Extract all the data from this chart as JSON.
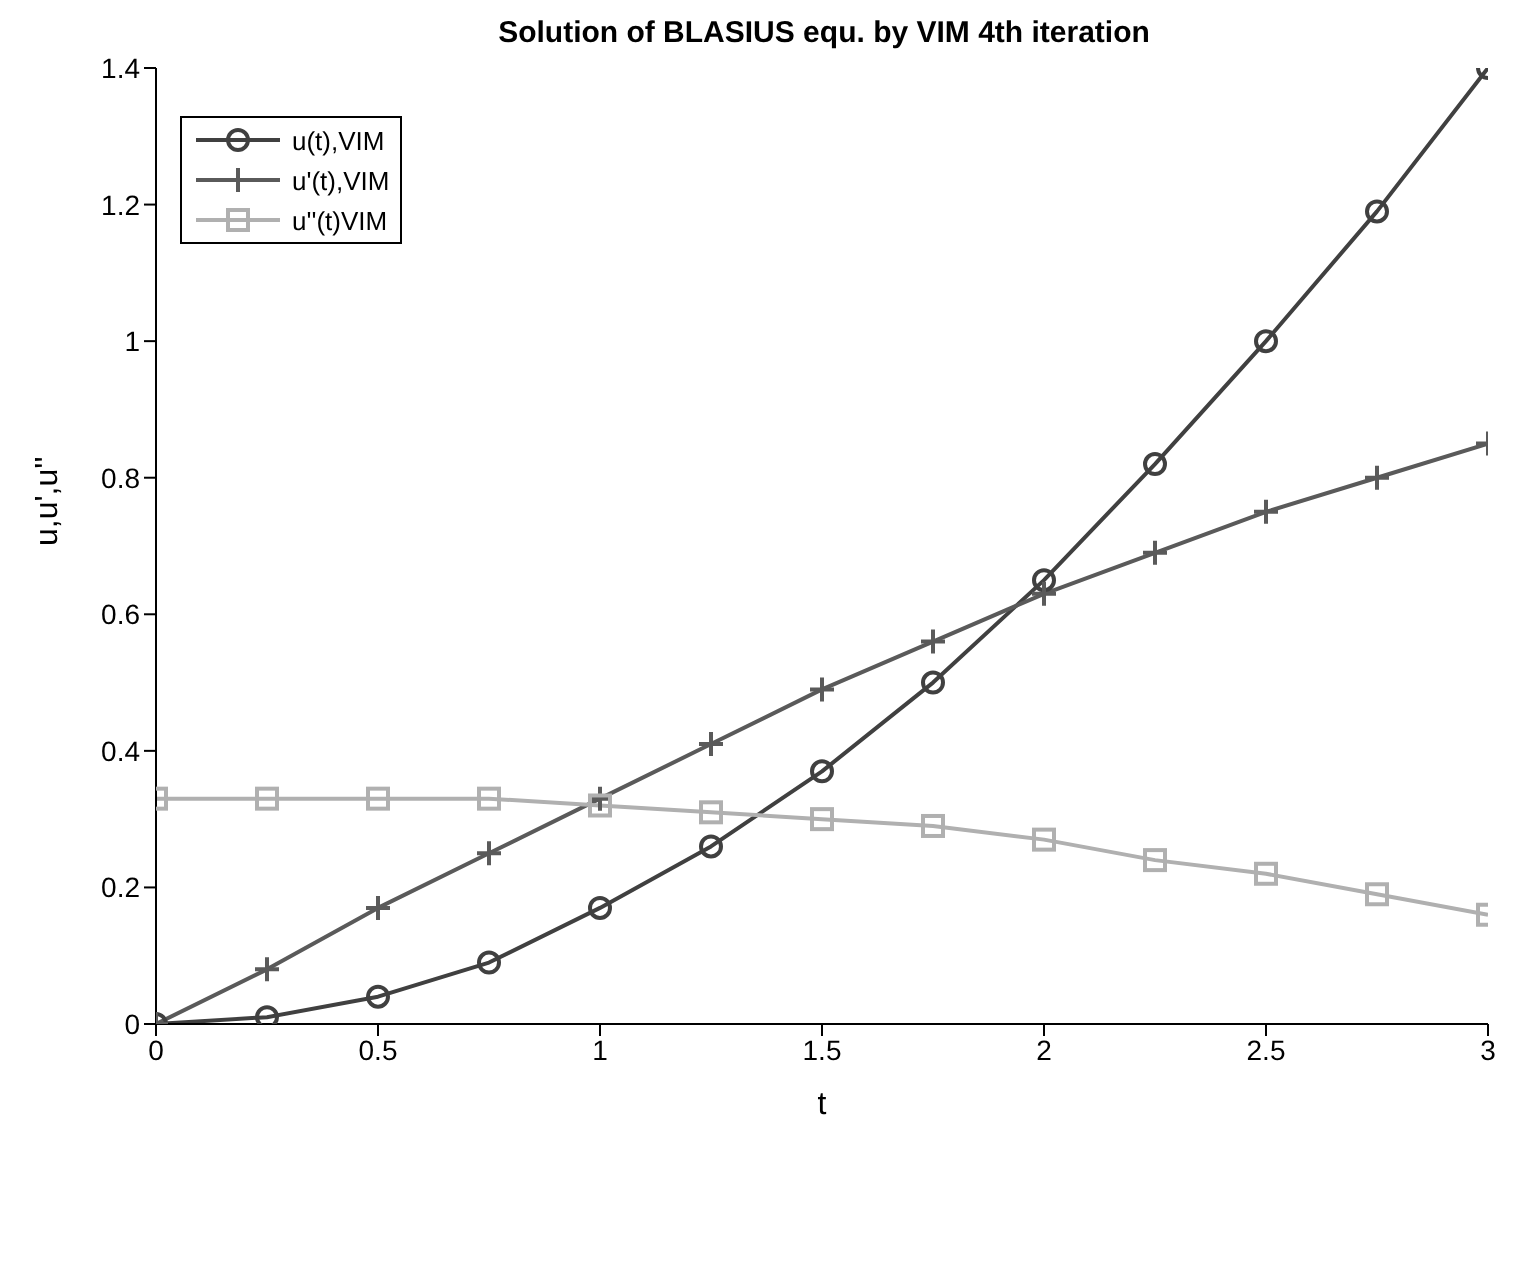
{
  "chart_data": {
    "type": "line",
    "title": "Solution of BLASIUS equ. by VIM 4th iteration",
    "xlabel": "t",
    "ylabel": "u,u',u''",
    "x": [
      0,
      0.25,
      0.5,
      0.75,
      1,
      1.25,
      1.5,
      1.75,
      2,
      2.25,
      2.5,
      2.75,
      3
    ],
    "series": [
      {
        "name": "u(t),VIM",
        "color": "#404040",
        "marker": "circle",
        "values": [
          0,
          0.01,
          0.04,
          0.09,
          0.17,
          0.26,
          0.37,
          0.5,
          0.65,
          0.82,
          1.0,
          1.19,
          1.4
        ]
      },
      {
        "name": "u'(t),VIM",
        "color": "#5a5a5a",
        "marker": "cross",
        "values": [
          0,
          0.08,
          0.17,
          0.25,
          0.33,
          0.41,
          0.49,
          0.56,
          0.63,
          0.69,
          0.75,
          0.8,
          0.85
        ]
      },
      {
        "name": "u''(t)VIM",
        "color": "#b0b0b0",
        "marker": "square",
        "values": [
          0.33,
          0.33,
          0.33,
          0.33,
          0.32,
          0.31,
          0.3,
          0.29,
          0.27,
          0.24,
          0.22,
          0.19,
          0.16
        ]
      }
    ],
    "xlim": [
      0,
      3
    ],
    "xticks": [
      0,
      0.5,
      1,
      1.5,
      2,
      2.5,
      3
    ],
    "ylim": [
      0,
      1.4
    ],
    "yticks": [
      0,
      0.2,
      0.4,
      0.6,
      0.8,
      1,
      1.2,
      1.4
    ],
    "grid": false,
    "legend": "top left",
    "line_style": "solid"
  }
}
